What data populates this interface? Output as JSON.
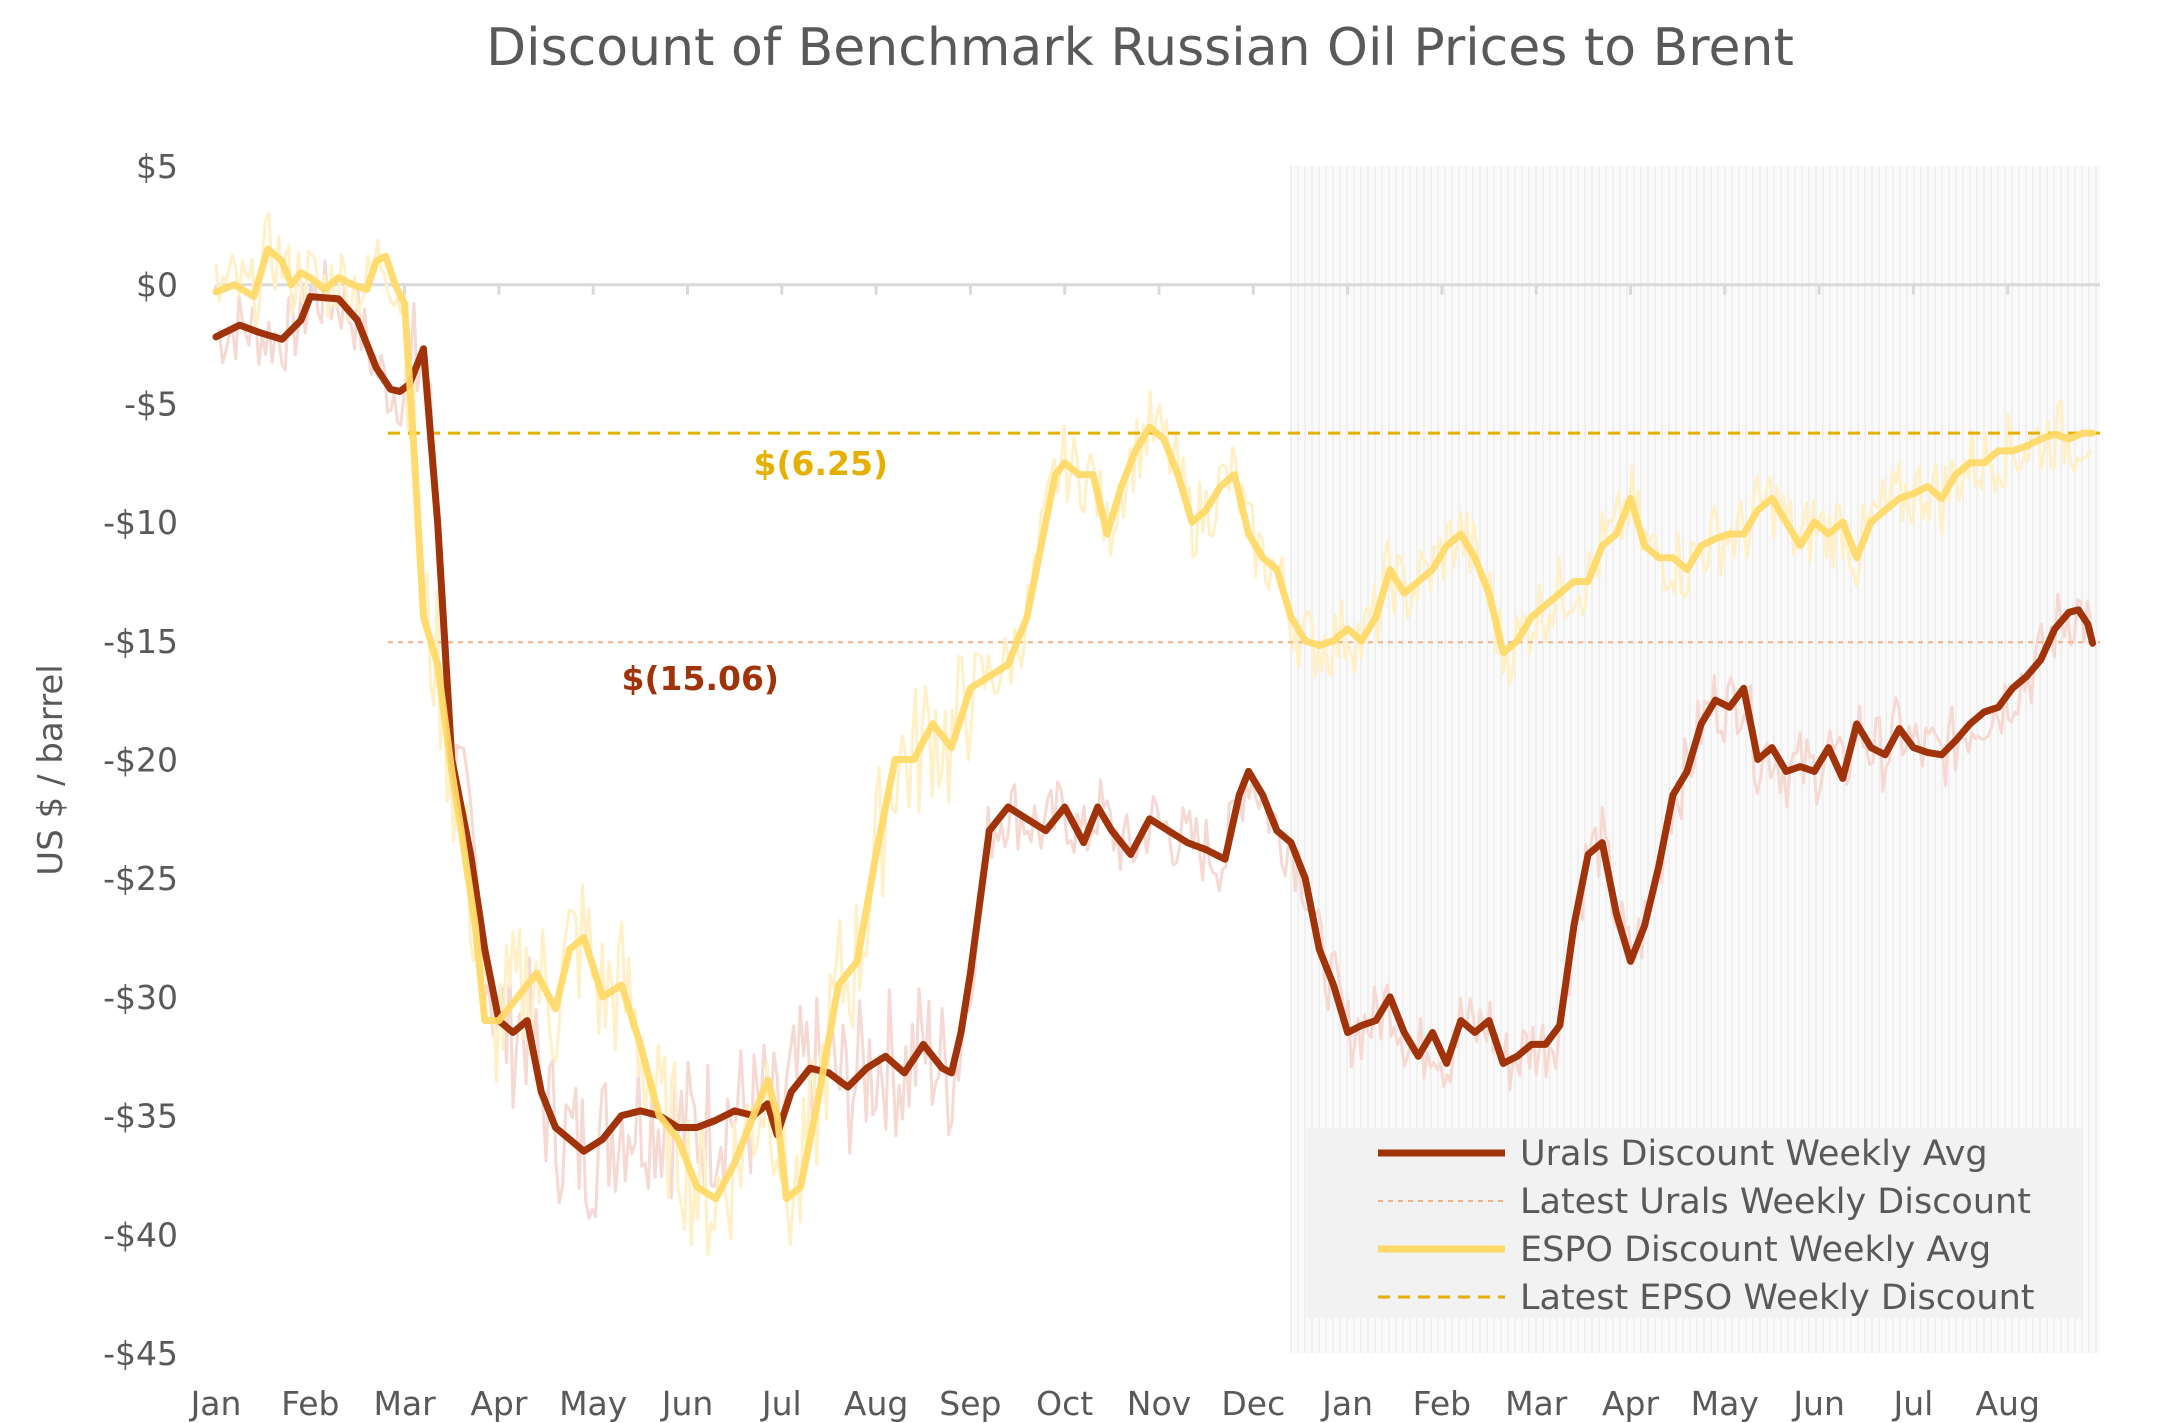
{
  "chart_data": {
    "type": "line",
    "title": "Discount of Benchmark Russian Oil Prices to Brent",
    "xlabel": "",
    "ylabel": "US $ / barrel",
    "ylim": [
      -45,
      5
    ],
    "yticks": [
      5,
      0,
      -5,
      -10,
      -15,
      -20,
      -25,
      -30,
      -35,
      -40,
      -45
    ],
    "ytick_labels": [
      "$5",
      "$0",
      "-$5",
      "-$10",
      "-$15",
      "-$20",
      "-$25",
      "-$30",
      "-$35",
      "-$40",
      "-$45"
    ],
    "x_month_labels": [
      "Jan",
      "Feb",
      "Mar",
      "Apr",
      "May",
      "Jun",
      "Jul",
      "Aug",
      "Sep",
      "Oct",
      "Nov",
      "Dec",
      "Jan",
      "Feb",
      "Mar",
      "Apr",
      "May",
      "Jun",
      "Jul",
      "Aug"
    ],
    "x_range_months": [
      0,
      19.9
    ],
    "forecast_shade_start_month": 11.4,
    "series": [
      {
        "name": "Urals Discount Weekly Avg",
        "color": "#a0330a",
        "x": [
          0,
          0.25,
          0.45,
          0.7,
          0.9,
          1.0,
          1.3,
          1.5,
          1.7,
          1.85,
          1.95,
          2.05,
          2.2,
          2.35,
          2.5,
          2.7,
          2.85,
          3.0,
          3.15,
          3.3,
          3.45,
          3.6,
          3.75,
          3.9,
          4.1,
          4.3,
          4.5,
          4.7,
          4.9,
          5.1,
          5.3,
          5.5,
          5.7,
          5.85,
          5.95,
          6.1,
          6.3,
          6.5,
          6.7,
          6.9,
          7.1,
          7.3,
          7.5,
          7.7,
          7.8,
          7.9,
          8.0,
          8.2,
          8.4,
          8.6,
          8.8,
          9.0,
          9.2,
          9.35,
          9.5,
          9.7,
          9.9,
          10.1,
          10.3,
          10.5,
          10.7,
          10.85,
          10.95,
          11.1,
          11.25,
          11.4,
          11.55,
          11.7,
          11.85,
          12.0,
          12.15,
          12.3,
          12.45,
          12.6,
          12.75,
          12.9,
          13.05,
          13.2,
          13.35,
          13.5,
          13.65,
          13.8,
          13.95,
          14.1,
          14.25,
          14.4,
          14.55,
          14.7,
          14.85,
          15.0,
          15.15,
          15.3,
          15.45,
          15.6,
          15.75,
          15.9,
          16.05,
          16.2,
          16.35,
          16.5,
          16.65,
          16.8,
          16.95,
          17.1,
          17.25,
          17.4,
          17.55,
          17.7,
          17.85,
          18.0,
          18.15,
          18.3,
          18.45,
          18.6,
          18.75,
          18.9,
          19.05,
          19.2,
          19.35,
          19.5,
          19.65,
          19.75,
          19.85,
          19.9
        ],
        "values": [
          -2.2,
          -1.7,
          -2.0,
          -2.3,
          -1.5,
          -0.5,
          -0.6,
          -1.5,
          -3.5,
          -4.4,
          -4.5,
          -4.2,
          -2.7,
          -10.0,
          -20.0,
          -24.0,
          -28.0,
          -31.0,
          -31.5,
          -31.0,
          -34.0,
          -35.5,
          -36.0,
          -36.5,
          -36.0,
          -35.0,
          -34.8,
          -35.0,
          -35.5,
          -35.5,
          -35.2,
          -34.8,
          -35.0,
          -34.5,
          -35.8,
          -34.0,
          -33.0,
          -33.2,
          -33.8,
          -33.0,
          -32.5,
          -33.2,
          -32.0,
          -33.0,
          -33.2,
          -31.5,
          -29.0,
          -23.0,
          -22.0,
          -22.5,
          -23.0,
          -22.0,
          -23.5,
          -22.0,
          -23.0,
          -24.0,
          -22.5,
          -23.0,
          -23.5,
          -23.8,
          -24.2,
          -21.5,
          -20.5,
          -21.5,
          -23.0,
          -23.5,
          -25.0,
          -28.0,
          -29.5,
          -31.5,
          -31.2,
          -31.0,
          -30.0,
          -31.5,
          -32.5,
          -31.5,
          -32.8,
          -31.0,
          -31.5,
          -31.0,
          -32.8,
          -32.5,
          -32.0,
          -32.0,
          -31.2,
          -27.0,
          -24.0,
          -23.5,
          -26.5,
          -28.5,
          -27.0,
          -24.5,
          -21.5,
          -20.5,
          -18.5,
          -17.5,
          -17.8,
          -17.0,
          -20.0,
          -19.5,
          -20.5,
          -20.3,
          -20.5,
          -19.5,
          -20.8,
          -18.5,
          -19.5,
          -19.8,
          -18.7,
          -19.5,
          -19.7,
          -19.8,
          -19.2,
          -18.5,
          -18.0,
          -17.8,
          -17.0,
          -16.5,
          -15.8,
          -14.5,
          -13.8,
          -13.7,
          -14.3,
          -15.1
        ]
      },
      {
        "name": "ESPO Discount Weekly Avg",
        "color": "#ffd966",
        "x": [
          0,
          0.2,
          0.4,
          0.55,
          0.7,
          0.8,
          0.9,
          1.0,
          1.15,
          1.3,
          1.45,
          1.6,
          1.7,
          1.8,
          1.9,
          2.0,
          2.1,
          2.2,
          2.35,
          2.5,
          2.6,
          2.75,
          2.85,
          3.0,
          3.2,
          3.4,
          3.6,
          3.75,
          3.9,
          4.1,
          4.3,
          4.5,
          4.7,
          4.9,
          5.1,
          5.3,
          5.5,
          5.7,
          5.85,
          5.95,
          6.05,
          6.2,
          6.4,
          6.6,
          6.8,
          7.0,
          7.2,
          7.4,
          7.6,
          7.8,
          8.0,
          8.2,
          8.4,
          8.6,
          8.8,
          8.9,
          9.0,
          9.15,
          9.3,
          9.45,
          9.6,
          9.75,
          9.9,
          10.05,
          10.2,
          10.35,
          10.5,
          10.65,
          10.8,
          10.95,
          11.1,
          11.25,
          11.4,
          11.55,
          11.7,
          11.85,
          12.0,
          12.15,
          12.3,
          12.45,
          12.6,
          12.75,
          12.9,
          13.05,
          13.2,
          13.35,
          13.5,
          13.65,
          13.8,
          13.95,
          14.1,
          14.25,
          14.4,
          14.55,
          14.7,
          14.85,
          15.0,
          15.15,
          15.3,
          15.45,
          15.6,
          15.75,
          15.9,
          16.05,
          16.2,
          16.35,
          16.5,
          16.65,
          16.8,
          16.95,
          17.1,
          17.25,
          17.4,
          17.55,
          17.7,
          17.85,
          18.0,
          18.15,
          18.3,
          18.45,
          18.6,
          18.75,
          18.9,
          19.05,
          19.2,
          19.35,
          19.5,
          19.65,
          19.8,
          19.9
        ],
        "values": [
          -0.3,
          0.0,
          -0.5,
          1.5,
          1.0,
          0.0,
          0.5,
          0.3,
          -0.2,
          0.3,
          0.0,
          -0.2,
          1.0,
          1.2,
          0.0,
          -0.8,
          -7.0,
          -14.0,
          -16.0,
          -20.5,
          -23.0,
          -27.0,
          -31.0,
          -31.0,
          -30.0,
          -29.0,
          -30.5,
          -28.0,
          -27.5,
          -30.0,
          -29.5,
          -32.0,
          -35.0,
          -36.0,
          -38.0,
          -38.5,
          -37.0,
          -35.0,
          -33.5,
          -35.0,
          -38.5,
          -38.0,
          -34.0,
          -29.5,
          -28.5,
          -24.0,
          -20.0,
          -20.0,
          -18.5,
          -19.5,
          -17.0,
          -16.5,
          -16.0,
          -14.0,
          -10.0,
          -8.0,
          -7.5,
          -8.0,
          -8.0,
          -10.5,
          -8.5,
          -7.0,
          -6.0,
          -6.5,
          -8.0,
          -10.0,
          -9.5,
          -8.5,
          -8.0,
          -10.5,
          -11.5,
          -12.0,
          -14.0,
          -15.0,
          -15.2,
          -15.0,
          -14.5,
          -15.0,
          -14.0,
          -12.0,
          -13.0,
          -12.5,
          -12.0,
          -11.0,
          -10.5,
          -11.5,
          -13.0,
          -15.5,
          -15.0,
          -14.0,
          -13.5,
          -13.0,
          -12.5,
          -12.5,
          -11.0,
          -10.5,
          -9.0,
          -11.0,
          -11.5,
          -11.5,
          -12.0,
          -11.0,
          -10.7,
          -10.5,
          -10.5,
          -9.5,
          -9.0,
          -10.0,
          -11.0,
          -10.0,
          -10.5,
          -10.0,
          -11.5,
          -10.0,
          -9.5,
          -9.0,
          -8.8,
          -8.5,
          -9.0,
          -8.0,
          -7.5,
          -7.5,
          -7.0,
          -7.0,
          -6.8,
          -6.5,
          -6.3,
          -6.5,
          -6.25,
          -6.25
        ]
      }
    ],
    "reference_lines": [
      {
        "name": "Latest Urals Weekly Discount",
        "value": -15.06,
        "label": "$(15.06)",
        "color": "#f4b183",
        "label_color": "#a0330a",
        "label_x_month": 4.3
      },
      {
        "name": "Latest EPSO Weekly Discount",
        "value": -6.25,
        "label": "$(6.25)",
        "color": "#e6b000",
        "label_color": "#e6b000",
        "label_x_month": 5.7
      }
    ],
    "legend": {
      "placement": "bottom-right",
      "entries": [
        {
          "label": "Urals Discount Weekly Avg",
          "color": "#a0330a",
          "style": "solid"
        },
        {
          "label": "Latest Urals Weekly Discount",
          "color": "#f4b183",
          "style": "dotted"
        },
        {
          "label": "ESPO Discount Weekly Avg",
          "color": "#ffd966",
          "style": "solid"
        },
        {
          "label": "Latest EPSO Weekly Discount",
          "color": "#e6b000",
          "style": "dashed"
        }
      ]
    },
    "grid": false
  }
}
